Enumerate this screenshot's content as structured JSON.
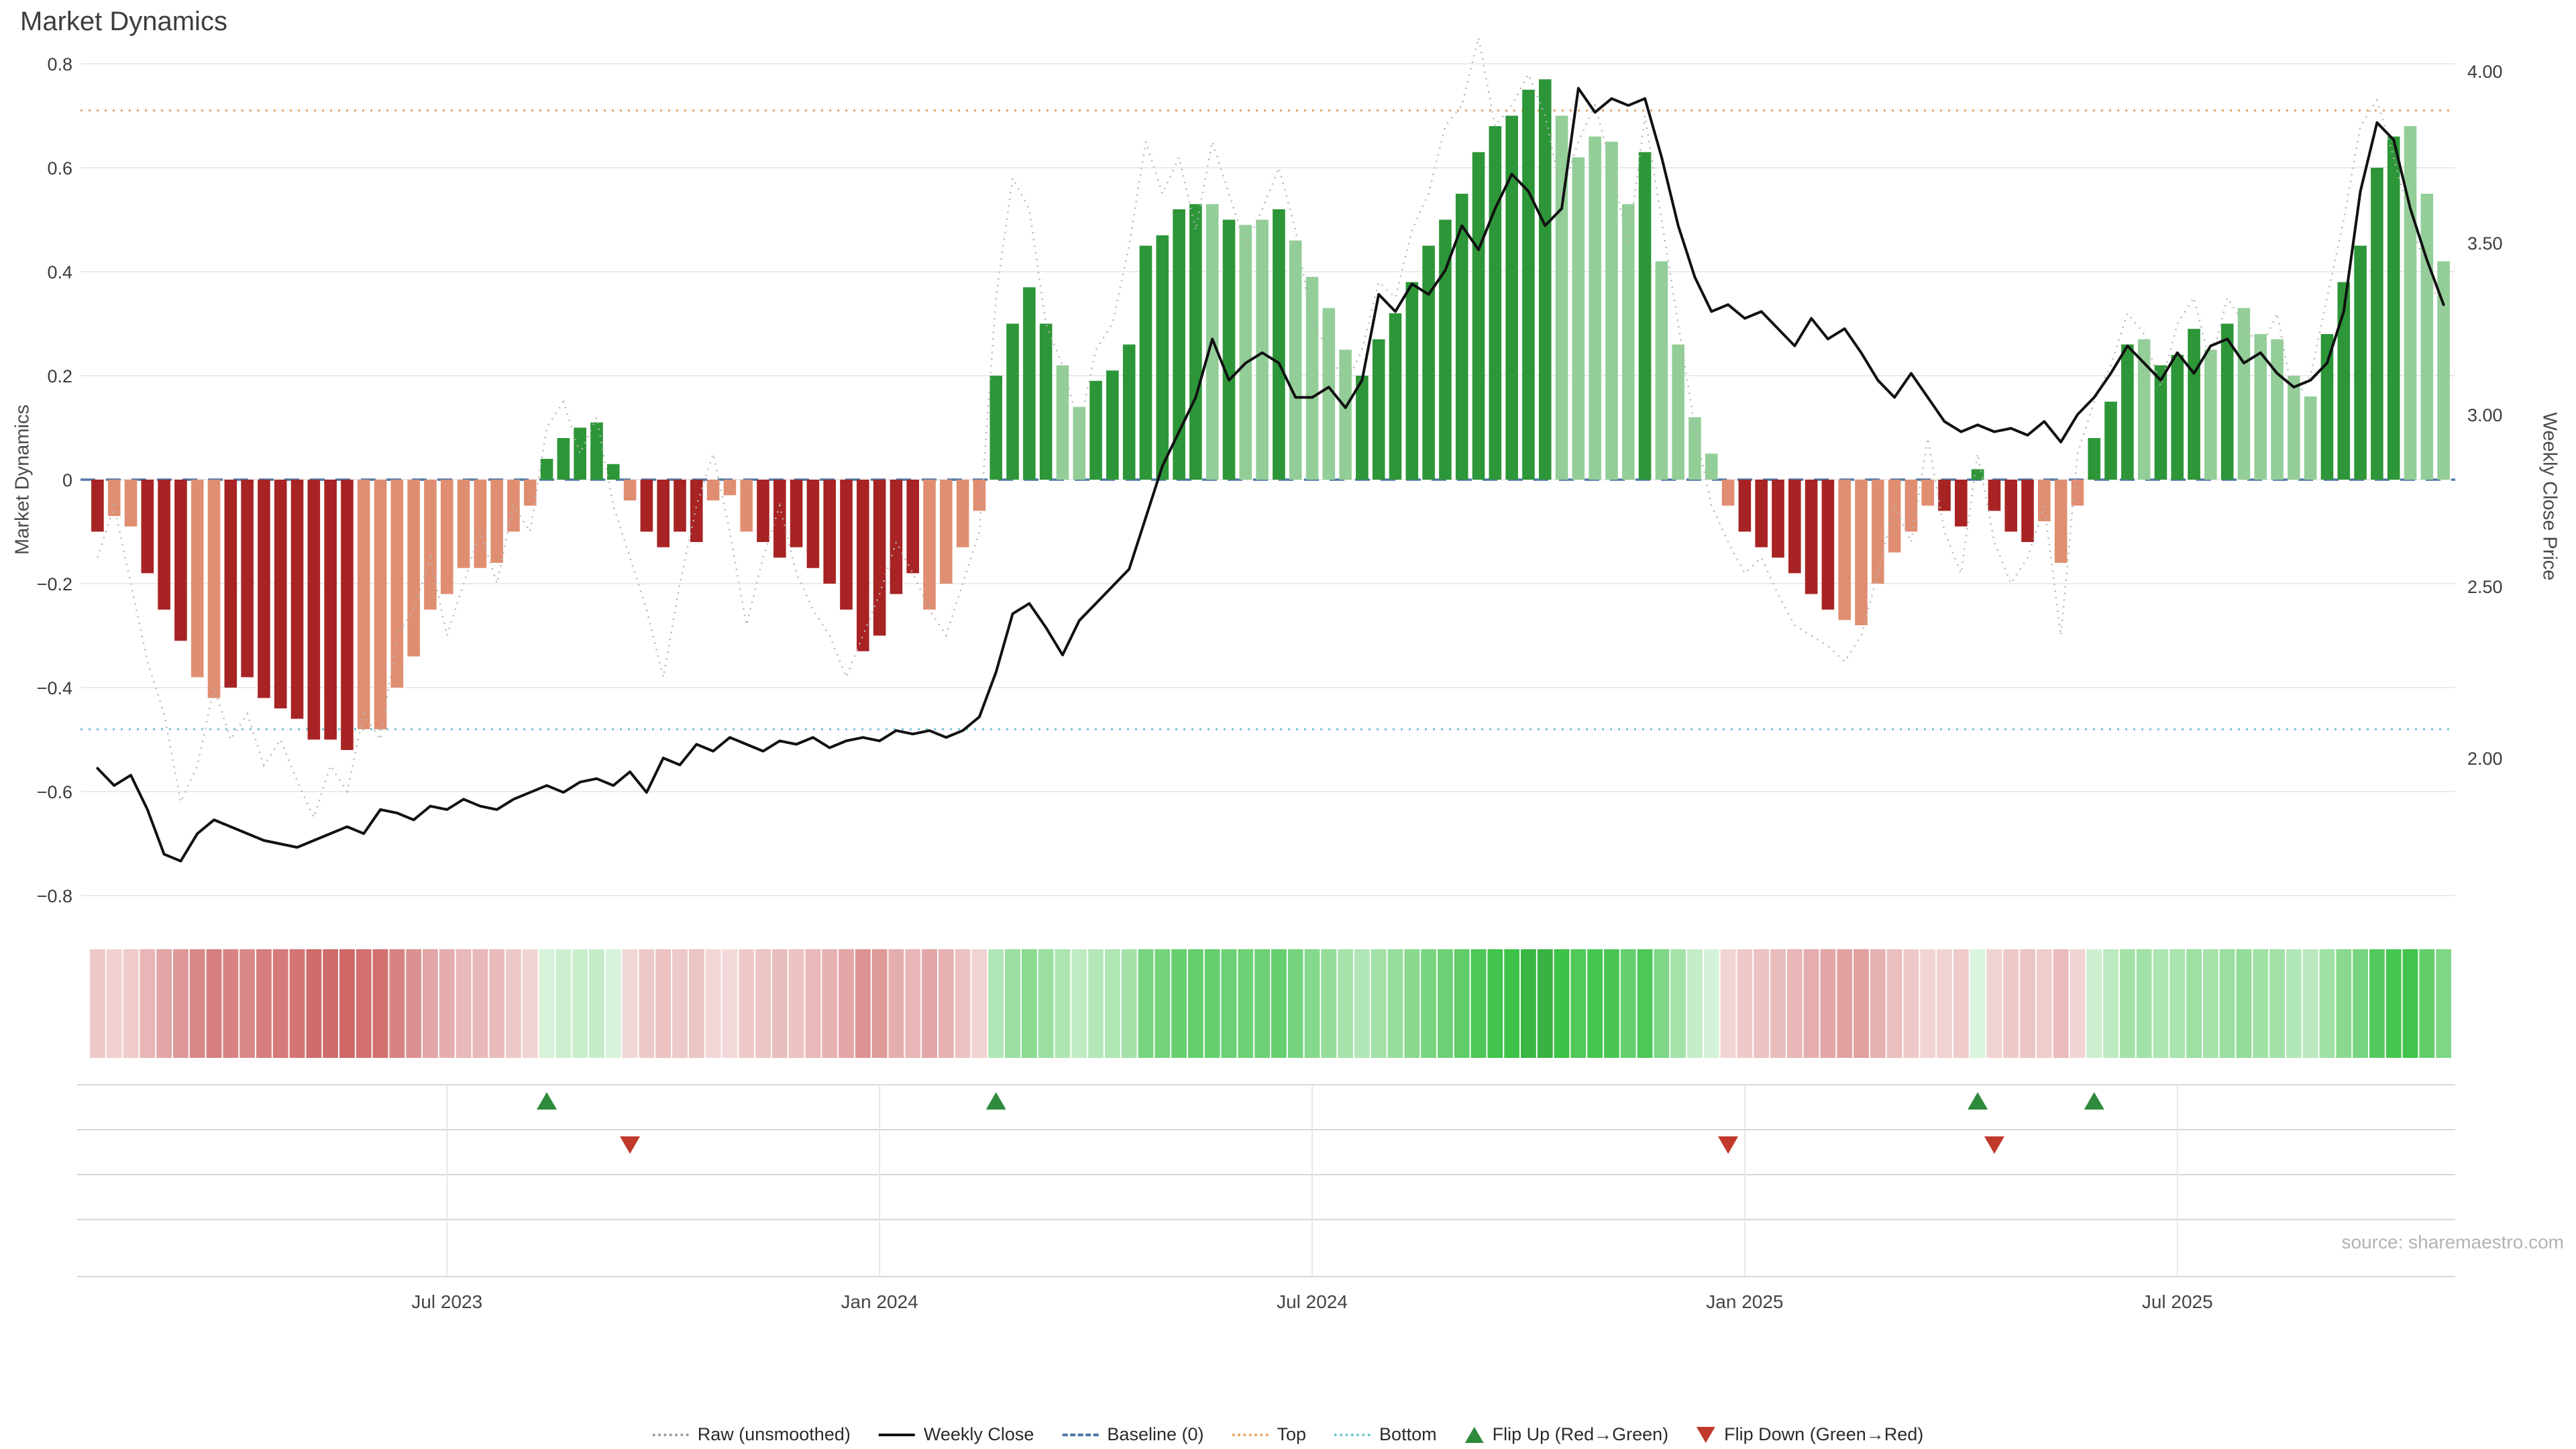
{
  "title": "Market Dynamics",
  "source": "source: sharemaestro.com",
  "axes": {
    "left_label": "Market Dynamics",
    "right_label": "Weekly Close Price",
    "left_ticks": [
      "0.8",
      "0.6",
      "0.4",
      "0.2",
      "0",
      "−0.2",
      "−0.4",
      "−0.6",
      "−0.8"
    ],
    "left_tick_values": [
      0.8,
      0.6,
      0.4,
      0.2,
      0,
      -0.2,
      -0.4,
      -0.6,
      -0.8
    ],
    "right_ticks": [
      "4.00",
      "3.50",
      "3.00",
      "2.50",
      "2.00"
    ],
    "right_tick_values": [
      4.0,
      3.5,
      3.0,
      2.5,
      2.0
    ],
    "x_ticks": [
      {
        "label": "Jul 2023",
        "week": 21
      },
      {
        "label": "Jan 2024",
        "week": 47
      },
      {
        "label": "Jul 2024",
        "week": 73
      },
      {
        "label": "Jan 2025",
        "week": 99
      },
      {
        "label": "Jul 2025",
        "week": 125
      }
    ]
  },
  "colors": {
    "dr": "#a82323",
    "lr": "#e08e72",
    "dg": "#2d9638",
    "lg": "#93ce98",
    "raw": "#b5b5b5",
    "close": "#111111",
    "baseline": "#4e79a7",
    "top": "#e8a15c",
    "bottom": "#6cc5ce",
    "flip_up": "#2e8b3c",
    "flip_down": "#c0392b",
    "grid": "#ebebeb",
    "panel_line": "#d8d8d8",
    "panel_vline": "#e7e7e7"
  },
  "legend": {
    "items": [
      {
        "label": "Raw (unsmoothed)",
        "type": "dotted-line",
        "color": "#9a9a9a"
      },
      {
        "label": "Weekly Close",
        "type": "solid-line",
        "color": "#111111"
      },
      {
        "label": "Baseline (0)",
        "type": "dashed-line",
        "color": "#4e79a7"
      },
      {
        "label": "Top",
        "type": "dotted-line",
        "color": "#e8a15c"
      },
      {
        "label": "Bottom",
        "type": "dotted-line",
        "color": "#6cc5ce"
      },
      {
        "label": "Flip Up (Red→Green)",
        "type": "triangle-up",
        "color": "#2e8b3c"
      },
      {
        "label": "Flip Down (Green→Red)",
        "type": "triangle-down",
        "color": "#c0392b"
      }
    ]
  },
  "chart_data": {
    "type": "bar",
    "subtype": "weekly bar oscillator + raw dotted line + price line + flip markers + heat strip",
    "title": "Market Dynamics",
    "ylabel_left": "Market Dynamics",
    "ylabel_right": "Weekly Close Price",
    "ylim_left": [
      -0.8,
      0.8
    ],
    "ylim_right_ticks": [
      2.0,
      4.0
    ],
    "baseline": 0,
    "top_threshold": 0.71,
    "bottom_threshold": -0.48,
    "weeks": 142,
    "values": [
      -0.1,
      -0.07,
      -0.09,
      -0.18,
      -0.25,
      -0.31,
      -0.38,
      -0.42,
      -0.4,
      -0.38,
      -0.42,
      -0.44,
      -0.46,
      -0.5,
      -0.5,
      -0.52,
      -0.48,
      -0.48,
      -0.4,
      -0.34,
      -0.25,
      -0.22,
      -0.17,
      -0.17,
      -0.16,
      -0.1,
      -0.05,
      0.04,
      0.08,
      0.1,
      0.11,
      0.03,
      -0.04,
      -0.1,
      -0.13,
      -0.1,
      -0.12,
      -0.04,
      -0.03,
      -0.1,
      -0.12,
      -0.15,
      -0.13,
      -0.17,
      -0.2,
      -0.25,
      -0.33,
      -0.3,
      -0.22,
      -0.18,
      -0.25,
      -0.2,
      -0.13,
      -0.06,
      0.2,
      0.3,
      0.37,
      0.3,
      0.22,
      0.14,
      0.19,
      0.21,
      0.26,
      0.45,
      0.47,
      0.52,
      0.53,
      0.53,
      0.5,
      0.49,
      0.5,
      0.52,
      0.46,
      0.39,
      0.33,
      0.25,
      0.2,
      0.27,
      0.32,
      0.38,
      0.45,
      0.5,
      0.55,
      0.63,
      0.68,
      0.7,
      0.75,
      0.77,
      0.7,
      0.62,
      0.66,
      0.65,
      0.53,
      0.63,
      0.42,
      0.26,
      0.12,
      0.05,
      -0.05,
      -0.1,
      -0.13,
      -0.15,
      -0.18,
      -0.22,
      -0.25,
      -0.27,
      -0.28,
      -0.2,
      -0.14,
      -0.1,
      -0.05,
      -0.06,
      -0.09,
      0.02,
      -0.06,
      -0.1,
      -0.12,
      -0.08,
      -0.16,
      -0.05,
      0.08,
      0.15,
      0.26,
      0.27,
      0.22,
      0.24,
      0.29,
      0.25,
      0.3,
      0.33,
      0.28,
      0.27,
      0.2,
      0.16,
      0.28,
      0.38,
      0.45,
      0.6,
      0.66,
      0.68,
      0.55,
      0.42
    ],
    "classes": [
      "dr",
      "lr",
      "lr",
      "dr",
      "dr",
      "dr",
      "lr",
      "lr",
      "dr",
      "dr",
      "dr",
      "dr",
      "dr",
      "dr",
      "dr",
      "dr",
      "lr",
      "lr",
      "lr",
      "lr",
      "lr",
      "lr",
      "lr",
      "lr",
      "lr",
      "lr",
      "lr",
      "dg",
      "dg",
      "dg",
      "dg",
      "dg",
      "lr",
      "dr",
      "dr",
      "dr",
      "dr",
      "lr",
      "lr",
      "lr",
      "dr",
      "dr",
      "dr",
      "dr",
      "dr",
      "dr",
      "dr",
      "dr",
      "dr",
      "dr",
      "lr",
      "lr",
      "lr",
      "lr",
      "dg",
      "dg",
      "dg",
      "dg",
      "lg",
      "lg",
      "dg",
      "dg",
      "dg",
      "dg",
      "dg",
      "dg",
      "dg",
      "lg",
      "dg",
      "lg",
      "lg",
      "dg",
      "lg",
      "lg",
      "lg",
      "lg",
      "dg",
      "dg",
      "dg",
      "dg",
      "dg",
      "dg",
      "dg",
      "dg",
      "dg",
      "dg",
      "dg",
      "dg",
      "lg",
      "lg",
      "lg",
      "lg",
      "lg",
      "dg",
      "lg",
      "lg",
      "lg",
      "lg",
      "lr",
      "dr",
      "dr",
      "dr",
      "dr",
      "dr",
      "dr",
      "lr",
      "lr",
      "lr",
      "lr",
      "lr",
      "lr",
      "dr",
      "dr",
      "dg",
      "dr",
      "dr",
      "dr",
      "lr",
      "lr",
      "lr",
      "dg",
      "dg",
      "dg",
      "lg",
      "dg",
      "dg",
      "dg",
      "lg",
      "dg",
      "lg",
      "lg",
      "lg",
      "lg",
      "lg",
      "dg",
      "dg",
      "dg",
      "dg",
      "dg",
      "lg",
      "lg",
      "lg"
    ],
    "raw": [
      -0.15,
      -0.05,
      -0.2,
      -0.35,
      -0.45,
      -0.62,
      -0.55,
      -0.4,
      -0.5,
      -0.45,
      -0.55,
      -0.5,
      -0.58,
      -0.65,
      -0.55,
      -0.6,
      -0.45,
      -0.5,
      -0.3,
      -0.25,
      -0.15,
      -0.3,
      -0.2,
      -0.1,
      -0.2,
      -0.05,
      -0.1,
      0.1,
      0.15,
      0.05,
      0.12,
      -0.05,
      -0.15,
      -0.25,
      -0.38,
      -0.2,
      -0.05,
      0.05,
      -0.1,
      -0.28,
      -0.15,
      -0.05,
      -0.18,
      -0.25,
      -0.3,
      -0.38,
      -0.3,
      -0.22,
      -0.12,
      -0.18,
      -0.25,
      -0.3,
      -0.2,
      -0.1,
      0.35,
      0.58,
      0.52,
      0.3,
      0.22,
      0.1,
      0.25,
      0.3,
      0.45,
      0.65,
      0.55,
      0.62,
      0.48,
      0.65,
      0.55,
      0.45,
      0.52,
      0.6,
      0.48,
      0.3,
      0.25,
      0.18,
      0.25,
      0.38,
      0.35,
      0.48,
      0.55,
      0.68,
      0.72,
      0.85,
      0.68,
      0.72,
      0.78,
      0.7,
      0.55,
      0.65,
      0.72,
      0.6,
      0.45,
      0.7,
      0.5,
      0.3,
      0.1,
      -0.05,
      -0.12,
      -0.18,
      -0.15,
      -0.22,
      -0.28,
      -0.3,
      -0.32,
      -0.35,
      -0.3,
      -0.18,
      -0.05,
      -0.12,
      0.08,
      -0.1,
      -0.18,
      0.05,
      -0.12,
      -0.2,
      -0.15,
      -0.05,
      -0.3,
      0.05,
      0.15,
      0.22,
      0.32,
      0.28,
      0.18,
      0.3,
      0.35,
      0.22,
      0.35,
      0.3,
      0.25,
      0.32,
      0.15,
      0.2,
      0.35,
      0.5,
      0.68,
      0.73,
      0.62,
      0.5,
      0.4,
      0.32
    ],
    "close": [
      1.97,
      1.92,
      1.95,
      1.85,
      1.72,
      1.7,
      1.78,
      1.82,
      1.8,
      1.78,
      1.76,
      1.75,
      1.74,
      1.76,
      1.78,
      1.8,
      1.78,
      1.85,
      1.84,
      1.82,
      1.86,
      1.85,
      1.88,
      1.86,
      1.85,
      1.88,
      1.9,
      1.92,
      1.9,
      1.93,
      1.94,
      1.92,
      1.96,
      1.9,
      2.0,
      1.98,
      2.04,
      2.02,
      2.06,
      2.04,
      2.02,
      2.05,
      2.04,
      2.06,
      2.03,
      2.05,
      2.06,
      2.05,
      2.08,
      2.07,
      2.08,
      2.06,
      2.08,
      2.12,
      2.25,
      2.42,
      2.45,
      2.38,
      2.3,
      2.4,
      2.45,
      2.5,
      2.55,
      2.7,
      2.85,
      2.95,
      3.05,
      3.22,
      3.1,
      3.15,
      3.18,
      3.15,
      3.05,
      3.05,
      3.08,
      3.02,
      3.1,
      3.35,
      3.3,
      3.38,
      3.35,
      3.42,
      3.55,
      3.48,
      3.6,
      3.7,
      3.65,
      3.55,
      3.6,
      3.95,
      3.88,
      3.92,
      3.9,
      3.92,
      3.75,
      3.55,
      3.4,
      3.3,
      3.32,
      3.28,
      3.3,
      3.25,
      3.2,
      3.28,
      3.22,
      3.25,
      3.18,
      3.1,
      3.05,
      3.12,
      3.05,
      2.98,
      2.95,
      2.97,
      2.95,
      2.96,
      2.94,
      2.98,
      2.92,
      3.0,
      3.05,
      3.12,
      3.2,
      3.15,
      3.1,
      3.18,
      3.12,
      3.2,
      3.22,
      3.15,
      3.18,
      3.12,
      3.08,
      3.1,
      3.15,
      3.3,
      3.65,
      3.85,
      3.8,
      3.6,
      3.45,
      3.32
    ],
    "flip_up_weeks": [
      27,
      54,
      113,
      120
    ],
    "flip_down_weeks": [
      32,
      98,
      114
    ],
    "grid": true,
    "legend_position": "bottom-center"
  }
}
